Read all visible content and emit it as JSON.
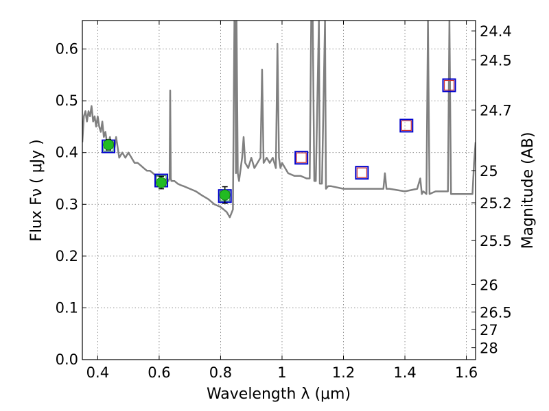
{
  "chart_data": {
    "type": "scatter",
    "xlabel": "Wavelength  λ (μm)",
    "ylabel": "Flux  Fν  ( μJy )",
    "y2label": "Magnitude (AB)",
    "xlim": [
      0.35,
      1.63
    ],
    "ylim": [
      0.0,
      0.655
    ],
    "xticks": [
      0.4,
      0.6,
      0.8,
      1.0,
      1.2,
      1.4,
      1.6
    ],
    "xtick_labels": [
      "0.4",
      "0.6",
      "0.8",
      "1",
      "1.2",
      "1.4",
      "1.6"
    ],
    "yticks": [
      0.0,
      0.1,
      0.2,
      0.3,
      0.4,
      0.5,
      0.6
    ],
    "ytick_labels": [
      "0.0",
      "0.1",
      "0.2",
      "0.3",
      "0.4",
      "0.5",
      "0.6"
    ],
    "magnitude_ticks": [
      {
        "label": "24.4",
        "flux": 0.635
      },
      {
        "label": "24.5",
        "flux": 0.579
      },
      {
        "label": "24.7",
        "flux": 0.482
      },
      {
        "label": "25",
        "flux": 0.365
      },
      {
        "label": "25.2",
        "flux": 0.303
      },
      {
        "label": "25.5",
        "flux": 0.23
      },
      {
        "label": "26",
        "flux": 0.145
      },
      {
        "label": "26.5",
        "flux": 0.092
      },
      {
        "label": "27",
        "flux": 0.058
      },
      {
        "label": "28",
        "flux": 0.023
      }
    ],
    "grid": true,
    "series": [
      {
        "marker": "open-square",
        "edge_color": "#0000cc",
        "x": [
          0.435,
          0.607,
          0.814,
          1.063,
          1.26,
          1.405,
          1.544
        ],
        "y": [
          0.412,
          0.346,
          0.316,
          0.39,
          0.361,
          0.452,
          0.53
        ],
        "fill_colors": [
          "#2e8b57",
          "#2e8b57",
          "#2e8b57",
          "#cc3333",
          "#cc3333",
          "#cc3333",
          "#cc3333"
        ]
      },
      {
        "marker": "filled-circle",
        "color": "#22bb22",
        "x": [
          0.435,
          0.607,
          0.814
        ],
        "y": [
          0.415,
          0.342,
          0.318
        ],
        "yerr": [
          0.01,
          0.012,
          0.016
        ]
      },
      {
        "type": "line",
        "color": "#808080",
        "x": [
          0.35,
          0.355,
          0.36,
          0.365,
          0.37,
          0.375,
          0.38,
          0.385,
          0.39,
          0.395,
          0.4,
          0.405,
          0.41,
          0.415,
          0.42,
          0.425,
          0.43,
          0.435,
          0.44,
          0.445,
          0.45,
          0.455,
          0.46,
          0.47,
          0.48,
          0.49,
          0.5,
          0.51,
          0.52,
          0.53,
          0.54,
          0.55,
          0.56,
          0.57,
          0.58,
          0.59,
          0.6,
          0.61,
          0.62,
          0.625,
          0.63,
          0.634,
          0.636,
          0.638,
          0.64,
          0.65,
          0.66,
          0.67,
          0.68,
          0.7,
          0.72,
          0.74,
          0.76,
          0.78,
          0.8,
          0.81,
          0.82,
          0.83,
          0.84,
          0.845,
          0.848,
          0.85,
          0.852,
          0.856,
          0.86,
          0.87,
          0.875,
          0.88,
          0.89,
          0.9,
          0.91,
          0.92,
          0.93,
          0.935,
          0.94,
          0.95,
          0.96,
          0.97,
          0.98,
          0.985,
          0.99,
          0.995,
          1.0,
          1.02,
          1.04,
          1.06,
          1.08,
          1.09,
          1.095,
          1.1,
          1.105,
          1.11,
          1.12,
          1.123,
          1.13,
          1.14,
          1.143,
          1.15,
          1.16,
          1.2,
          1.25,
          1.3,
          1.33,
          1.335,
          1.34,
          1.35,
          1.4,
          1.44,
          1.45,
          1.455,
          1.46,
          1.47,
          1.475,
          1.48,
          1.5,
          1.54,
          1.545,
          1.55,
          1.6,
          1.62,
          1.625,
          1.63
        ],
        "y": [
          0.42,
          0.47,
          0.48,
          0.46,
          0.48,
          0.47,
          0.49,
          0.46,
          0.47,
          0.45,
          0.47,
          0.45,
          0.44,
          0.46,
          0.43,
          0.44,
          0.42,
          0.42,
          0.43,
          0.41,
          0.42,
          0.41,
          0.43,
          0.39,
          0.4,
          0.39,
          0.4,
          0.39,
          0.38,
          0.38,
          0.375,
          0.37,
          0.365,
          0.365,
          0.36,
          0.355,
          0.355,
          0.35,
          0.345,
          0.35,
          0.345,
          0.35,
          0.52,
          0.35,
          0.345,
          0.345,
          0.34,
          0.337,
          0.335,
          0.33,
          0.325,
          0.317,
          0.31,
          0.3,
          0.295,
          0.29,
          0.285,
          0.275,
          0.29,
          0.655,
          0.65,
          0.36,
          0.655,
          0.36,
          0.345,
          0.39,
          0.43,
          0.38,
          0.37,
          0.39,
          0.37,
          0.38,
          0.39,
          0.56,
          0.38,
          0.39,
          0.38,
          0.39,
          0.37,
          0.61,
          0.39,
          0.37,
          0.38,
          0.36,
          0.355,
          0.355,
          0.35,
          0.35,
          0.655,
          0.655,
          0.345,
          0.345,
          0.655,
          0.34,
          0.34,
          0.655,
          0.33,
          0.335,
          0.335,
          0.33,
          0.33,
          0.33,
          0.33,
          0.36,
          0.33,
          0.33,
          0.325,
          0.33,
          0.35,
          0.32,
          0.325,
          0.32,
          0.655,
          0.32,
          0.325,
          0.325,
          0.655,
          0.32,
          0.32,
          0.32,
          0.38,
          0.42
        ]
      }
    ]
  }
}
